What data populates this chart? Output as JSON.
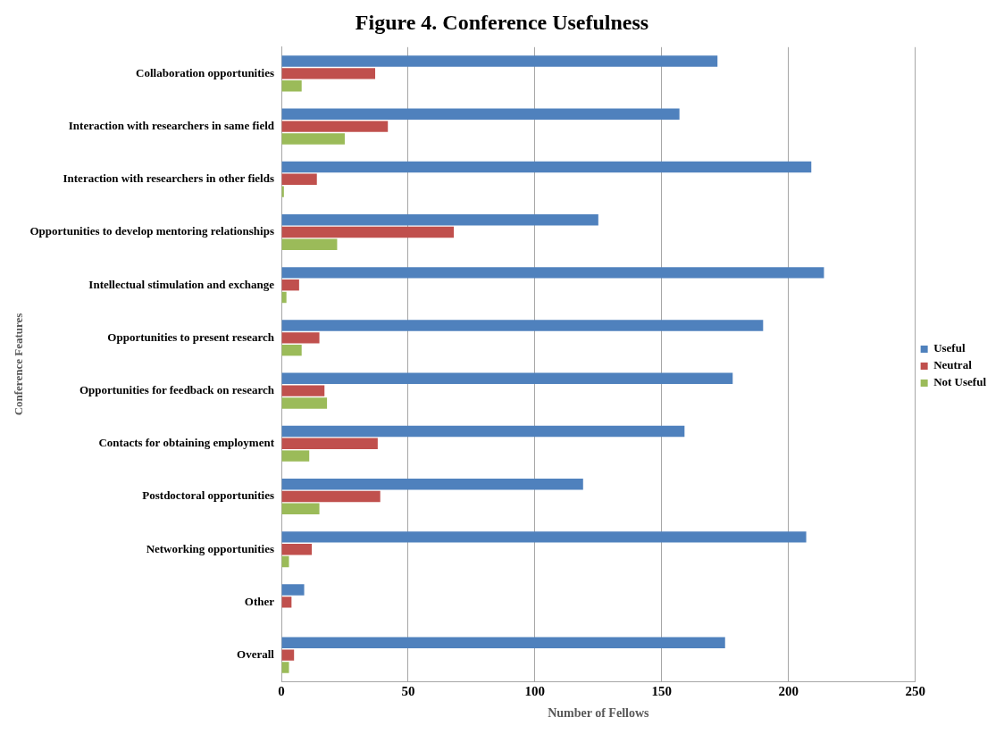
{
  "chart_data": {
    "type": "bar",
    "orientation": "horizontal",
    "title": "Figure 4. Conference Usefulness",
    "xlabel": "Number of Fellows",
    "ylabel": "Conference Features",
    "categories": [
      "Collaboration opportunities",
      "Interaction with researchers in same field",
      "Interaction with researchers in other fields",
      "Opportunities to develop mentoring relationships",
      "Intellectual stimulation and exchange",
      "Opportunities to present research",
      "Opportunities for feedback on research",
      "Contacts for obtaining employment",
      "Postdoctoral opportunities",
      "Networking opportunities",
      "Other",
      "Overall"
    ],
    "series": [
      {
        "name": "Useful",
        "color": "#4f81bd",
        "values": [
          172,
          157,
          209,
          125,
          214,
          190,
          178,
          159,
          119,
          207,
          9,
          175
        ]
      },
      {
        "name": "Neutral",
        "color": "#c0504d",
        "values": [
          37,
          42,
          14,
          68,
          7,
          15,
          17,
          38,
          39,
          12,
          4,
          5
        ]
      },
      {
        "name": "Not Useful",
        "color": "#9bbb59",
        "values": [
          8,
          25,
          1,
          22,
          2,
          8,
          18,
          11,
          15,
          3,
          0,
          3
        ]
      }
    ],
    "xlim": [
      0,
      250
    ],
    "xticks": [
      0,
      50,
      100,
      150,
      200,
      250
    ],
    "grid": "x",
    "legend": "right"
  }
}
